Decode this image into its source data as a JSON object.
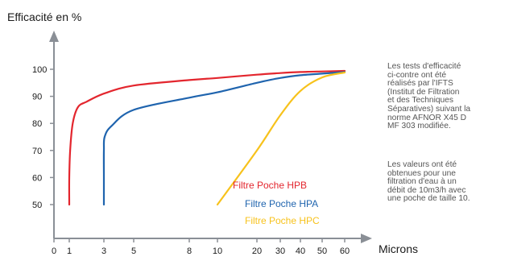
{
  "chart_data": {
    "type": "line",
    "ylabel": "Efficacité en %",
    "xlabel": "Microns",
    "y_ticks": [
      50,
      60,
      70,
      80,
      90,
      100
    ],
    "x_ticks": [
      0,
      1,
      3,
      5,
      8,
      10,
      20,
      30,
      40,
      50,
      60
    ],
    "ylim": [
      47,
      112
    ],
    "grid": false,
    "series": [
      {
        "name": "Filtre Poche HPB",
        "color": "#e3262e",
        "points": [
          [
            1,
            50
          ],
          [
            1,
            60
          ],
          [
            1.05,
            70
          ],
          [
            1.2,
            80
          ],
          [
            1.5,
            86
          ],
          [
            2,
            88
          ],
          [
            3,
            91
          ],
          [
            5,
            94
          ],
          [
            8,
            96
          ],
          [
            10,
            96.8
          ],
          [
            20,
            98
          ],
          [
            30,
            98.6
          ],
          [
            40,
            99
          ],
          [
            50,
            99.2
          ],
          [
            60,
            99.4
          ]
        ]
      },
      {
        "name": "Filtre Poche HPA",
        "color": "#1f64ae",
        "points": [
          [
            3,
            50
          ],
          [
            3,
            60
          ],
          [
            3,
            70
          ],
          [
            3.05,
            75
          ],
          [
            3.5,
            79
          ],
          [
            5,
            85
          ],
          [
            8,
            89.5
          ],
          [
            10,
            91.5
          ],
          [
            20,
            95
          ],
          [
            30,
            96.8
          ],
          [
            40,
            97.8
          ],
          [
            50,
            98.4
          ],
          [
            60,
            99
          ]
        ]
      },
      {
        "name": "Filtre Poche HPC",
        "color": "#f7c21c",
        "points": [
          [
            10,
            50
          ],
          [
            20,
            70
          ],
          [
            30,
            83
          ],
          [
            40,
            92
          ],
          [
            50,
            97
          ],
          [
            60,
            98.8
          ]
        ]
      }
    ],
    "legend_position": "inside-center"
  },
  "notes": [
    "Les tests d'efficacité\nci-contre ont été\nréalisés par l'IFTS\n(Institut de Filtration\net des Techniques\nSéparatives) suivant la\nnorme AFNOR X45 D\nMF 303  modifiée.",
    "Les valeurs ont été\nobtenues pour une\nfiltration d'eau à un\ndébit de 10m3/h avec\nune poche de taille 10."
  ]
}
